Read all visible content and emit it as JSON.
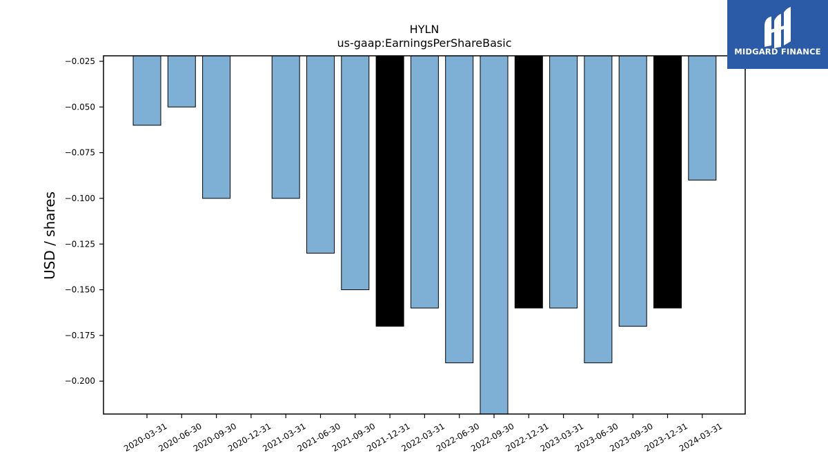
{
  "chart_data": {
    "type": "bar",
    "title": "HYLN",
    "subtitle": "us-gaap:EarningsPerShareBasic",
    "xlabel": "",
    "ylabel": "USD / shares",
    "categories": [
      "2020-03-31",
      "2020-06-30",
      "2020-09-30",
      "2020-12-31",
      "2021-03-31",
      "2021-06-30",
      "2021-09-30",
      "2021-12-31",
      "2022-03-31",
      "2022-06-30",
      "2022-09-30",
      "2022-12-31",
      "2023-03-31",
      "2023-06-30",
      "2023-09-30",
      "2023-12-31",
      "2024-03-31"
    ],
    "values": [
      -0.06,
      -0.05,
      -0.1,
      null,
      -0.1,
      -0.13,
      -0.15,
      -0.17,
      -0.16,
      -0.19,
      -0.22,
      -0.16,
      -0.16,
      -0.19,
      -0.17,
      -0.16,
      -0.09
    ],
    "bar_colors": [
      "#7eb0d5",
      "#7eb0d5",
      "#7eb0d5",
      "#7eb0d5",
      "#7eb0d5",
      "#7eb0d5",
      "#7eb0d5",
      "#000000",
      "#7eb0d5",
      "#7eb0d5",
      "#7eb0d5",
      "#000000",
      "#7eb0d5",
      "#7eb0d5",
      "#7eb0d5",
      "#000000",
      "#7eb0d5"
    ],
    "ylim": [
      -0.218,
      -0.022
    ],
    "yticks": [
      -0.025,
      -0.05,
      -0.075,
      -0.1,
      -0.125,
      -0.15,
      -0.175,
      -0.2
    ],
    "ytick_labels": [
      "−0.025",
      "−0.050",
      "−0.075",
      "−0.100",
      "−0.125",
      "−0.150",
      "−0.175",
      "−0.200"
    ],
    "grid": false,
    "legend": "none"
  },
  "logo": {
    "text": "MIDGARD FINANCE",
    "color": "#2b5aa6"
  }
}
